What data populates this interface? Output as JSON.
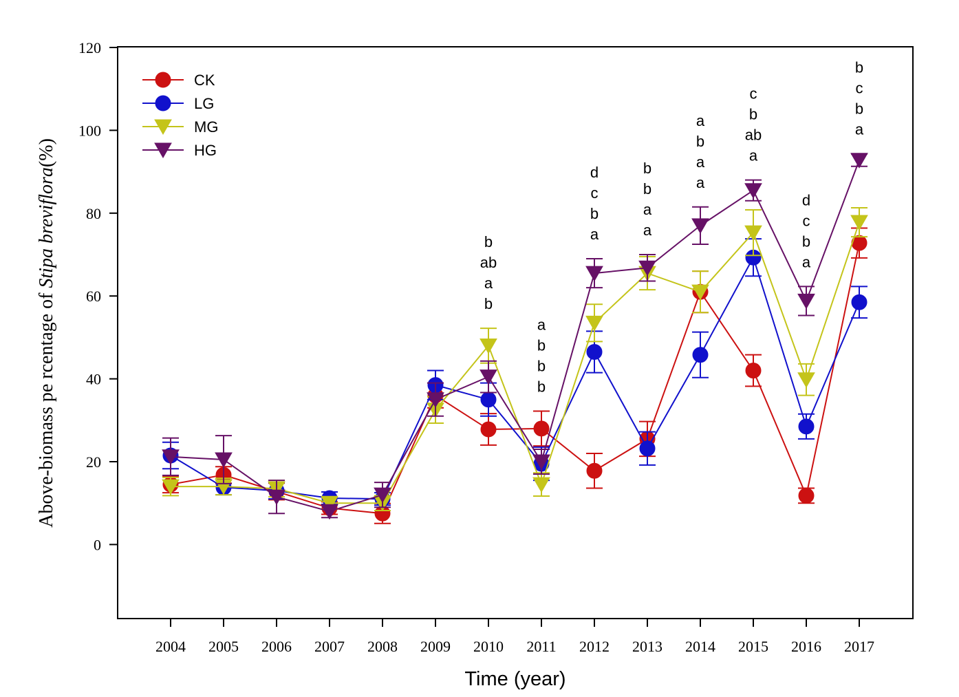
{
  "chart_data": {
    "type": "line",
    "xlabel": "Time (year)",
    "ylabel_prefix": "Above-biomass pe rcentage of ",
    "ylabel_species": "Stipa breviflora",
    "ylabel_suffix": "(%)",
    "ylim": [
      -18,
      120
    ],
    "yticks": [
      0,
      20,
      40,
      60,
      80,
      100,
      120
    ],
    "categories": [
      "2004",
      "2005",
      "2006",
      "2007",
      "2008",
      "2009",
      "2010",
      "2011",
      "2012",
      "2013",
      "2014",
      "2015",
      "2016",
      "2017"
    ],
    "legend_position": "top-left",
    "series": [
      {
        "name": "CK",
        "color": "#cc1111",
        "marker": "circle",
        "values": [
          14.5,
          16.8,
          12.8,
          8.8,
          7.5,
          36.0,
          27.8,
          28.0,
          17.8,
          25.5,
          61.0,
          42.0,
          11.8,
          72.8
        ],
        "errors": [
          2.0,
          2.0,
          2.0,
          1.5,
          2.4,
          3.0,
          3.8,
          4.2,
          4.2,
          4.2,
          5.0,
          3.8,
          1.8,
          3.6
        ]
      },
      {
        "name": "LG",
        "color": "#1111cc",
        "marker": "circle",
        "values": [
          21.5,
          13.8,
          13.0,
          11.2,
          11.0,
          38.5,
          35.0,
          19.5,
          46.5,
          23.2,
          45.8,
          69.3,
          28.5,
          58.5
        ],
        "errors": [
          3.2,
          1.8,
          2.0,
          1.5,
          1.5,
          3.5,
          4.0,
          4.0,
          5.0,
          4.0,
          5.5,
          4.5,
          3.0,
          3.8
        ]
      },
      {
        "name": "MG",
        "color": "#c4c41a",
        "marker": "triangle-down",
        "values": [
          14.0,
          14.0,
          13.5,
          10.0,
          10.0,
          32.5,
          48.0,
          14.5,
          53.5,
          65.5,
          61.0,
          75.3,
          39.8,
          77.8
        ],
        "errors": [
          2.2,
          2.0,
          2.0,
          1.5,
          1.8,
          3.2,
          4.2,
          2.8,
          4.5,
          4.0,
          5.0,
          5.5,
          3.8,
          3.5
        ]
      },
      {
        "name": "HG",
        "color": "#661166",
        "marker": "triangle-down",
        "values": [
          21.2,
          20.5,
          11.5,
          8.0,
          12.0,
          35.0,
          40.5,
          20.0,
          65.5,
          66.8,
          77.0,
          85.5,
          58.8,
          92.8
        ],
        "errors": [
          4.5,
          5.8,
          4.0,
          1.5,
          3.0,
          4.0,
          3.8,
          3.0,
          3.5,
          3.2,
          4.5,
          2.5,
          3.5,
          1.5
        ]
      }
    ],
    "annotations": [
      {
        "category": "2010",
        "letters": [
          "b",
          "ab",
          "a",
          "b"
        ]
      },
      {
        "category": "2011",
        "letters": [
          "a",
          "b",
          "b",
          "b"
        ]
      },
      {
        "category": "2012",
        "letters": [
          "d",
          "c",
          "b",
          "a"
        ]
      },
      {
        "category": "2013",
        "letters": [
          "b",
          "b",
          "a",
          "a"
        ]
      },
      {
        "category": "2014",
        "letters": [
          "a",
          "b",
          "a",
          "a"
        ]
      },
      {
        "category": "2015",
        "letters": [
          "c",
          "b",
          "ab",
          "a"
        ]
      },
      {
        "category": "2016",
        "letters": [
          "d",
          "c",
          "b",
          "a"
        ]
      },
      {
        "category": "2017",
        "letters": [
          "b",
          "c",
          "b",
          "a"
        ]
      }
    ]
  }
}
